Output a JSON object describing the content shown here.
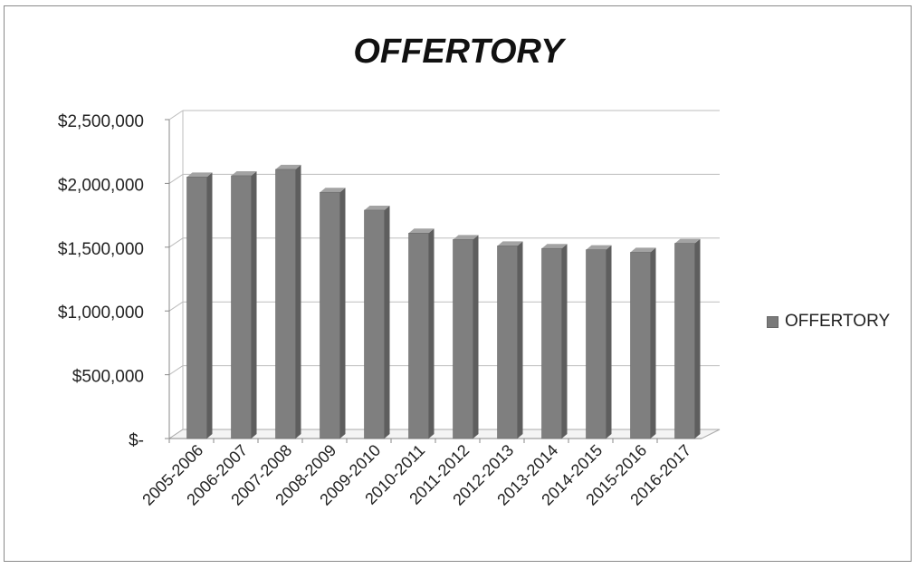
{
  "chart_data": {
    "type": "bar",
    "title": "OFFERTORY",
    "xlabel": "",
    "ylabel": "",
    "categories": [
      "2005-2006",
      "2006-2007",
      "2007-2008",
      "2008-2009",
      "2009-2010",
      "2010-2011",
      "2011-2012",
      "2012-2013",
      "2013-2014",
      "2014-2015",
      "2015-2016",
      "2016-2017"
    ],
    "series": [
      {
        "name": "OFFERTORY",
        "values": [
          2050000,
          2060000,
          2110000,
          1930000,
          1790000,
          1610000,
          1560000,
          1510000,
          1490000,
          1480000,
          1460000,
          1530000
        ]
      }
    ],
    "yticks": [
      "$-",
      "$500,000",
      "$1,000,000",
      "$1,500,000",
      "$2,000,000",
      "$2,500,000"
    ],
    "ylim": [
      0,
      2500000
    ],
    "grid": true,
    "legend_position": "right",
    "colors": {
      "bar": "#7f7f7f",
      "bar_dark": "#5e5e5e",
      "bar_light": "#a3a3a3",
      "grid": "#bdbdbd"
    }
  }
}
